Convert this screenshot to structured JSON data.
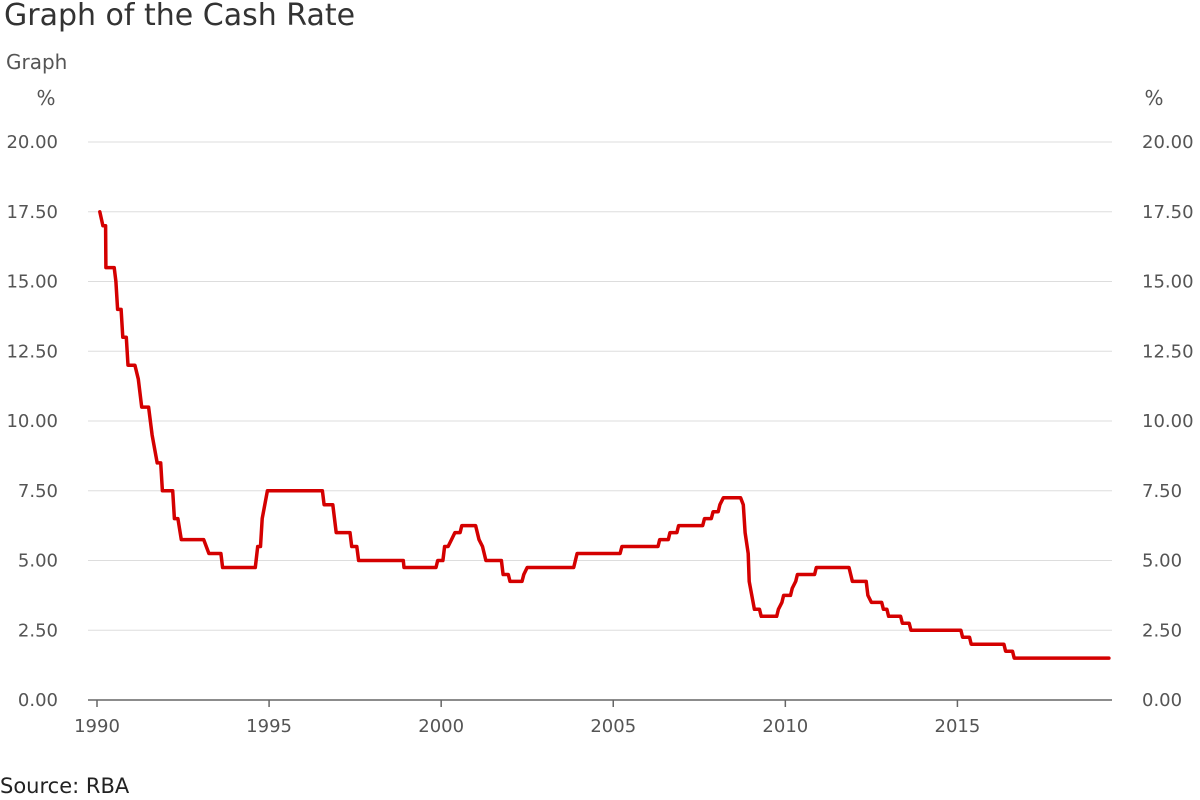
{
  "title": "Graph of the Cash Rate",
  "subtitle": "Graph",
  "source": "Source: RBA",
  "colors": {
    "series": "#d40000",
    "grid": "#dddddd",
    "axis": "#666666"
  },
  "chart_data": {
    "type": "line",
    "y_unit_left": "%",
    "y_unit_right": "%",
    "ylim": [
      0,
      20
    ],
    "xlim": [
      1989.8,
      2019.5
    ],
    "grid": "horizontal",
    "legend": "none",
    "y_ticks": [
      {
        "value": 0,
        "label": "0.00"
      },
      {
        "value": 2.5,
        "label": "2.50"
      },
      {
        "value": 5,
        "label": "5.00"
      },
      {
        "value": 7.5,
        "label": "7.50"
      },
      {
        "value": 10,
        "label": "10.00"
      },
      {
        "value": 12.5,
        "label": "12.50"
      },
      {
        "value": 15,
        "label": "15.00"
      },
      {
        "value": 17.5,
        "label": "17.50"
      },
      {
        "value": 20,
        "label": "20.00"
      }
    ],
    "x_ticks": [
      {
        "value": 1990,
        "label": "1990"
      },
      {
        "value": 1995,
        "label": "1995"
      },
      {
        "value": 2000,
        "label": "2000"
      },
      {
        "value": 2005,
        "label": "2005"
      },
      {
        "value": 2010,
        "label": "2010"
      },
      {
        "value": 2015,
        "label": "2015"
      }
    ],
    "series": [
      {
        "points": [
          [
            1990.08,
            17.5
          ],
          [
            1990.17,
            17.0
          ],
          [
            1990.25,
            17.0
          ],
          [
            1990.26,
            15.5
          ],
          [
            1990.5,
            15.5
          ],
          [
            1990.55,
            15.0
          ],
          [
            1990.6,
            14.0
          ],
          [
            1990.7,
            14.0
          ],
          [
            1990.75,
            13.0
          ],
          [
            1990.85,
            13.0
          ],
          [
            1990.9,
            12.0
          ],
          [
            1991.1,
            12.0
          ],
          [
            1991.2,
            11.5
          ],
          [
            1991.3,
            10.5
          ],
          [
            1991.5,
            10.5
          ],
          [
            1991.6,
            9.5
          ],
          [
            1991.75,
            8.5
          ],
          [
            1991.85,
            8.5
          ],
          [
            1991.9,
            7.5
          ],
          [
            1992.2,
            7.5
          ],
          [
            1992.25,
            6.5
          ],
          [
            1992.35,
            6.5
          ],
          [
            1992.45,
            5.75
          ],
          [
            1993.1,
            5.75
          ],
          [
            1993.25,
            5.25
          ],
          [
            1993.6,
            5.25
          ],
          [
            1993.65,
            4.75
          ],
          [
            1994.6,
            4.75
          ],
          [
            1994.67,
            5.5
          ],
          [
            1994.75,
            5.5
          ],
          [
            1994.8,
            6.5
          ],
          [
            1994.95,
            7.5
          ],
          [
            1996.55,
            7.5
          ],
          [
            1996.6,
            7.0
          ],
          [
            1996.85,
            7.0
          ],
          [
            1996.95,
            6.0
          ],
          [
            1997.35,
            6.0
          ],
          [
            1997.4,
            5.5
          ],
          [
            1997.55,
            5.5
          ],
          [
            1997.6,
            5.0
          ],
          [
            1998.9,
            5.0
          ],
          [
            1998.92,
            4.75
          ],
          [
            1999.85,
            4.75
          ],
          [
            1999.9,
            5.0
          ],
          [
            2000.05,
            5.0
          ],
          [
            2000.1,
            5.5
          ],
          [
            2000.2,
            5.5
          ],
          [
            2000.3,
            5.75
          ],
          [
            2000.4,
            6.0
          ],
          [
            2000.55,
            6.0
          ],
          [
            2000.6,
            6.25
          ],
          [
            2001.0,
            6.25
          ],
          [
            2001.1,
            5.75
          ],
          [
            2001.2,
            5.5
          ],
          [
            2001.3,
            5.0
          ],
          [
            2001.75,
            5.0
          ],
          [
            2001.8,
            4.5
          ],
          [
            2001.95,
            4.5
          ],
          [
            2002.0,
            4.25
          ],
          [
            2002.35,
            4.25
          ],
          [
            2002.4,
            4.5
          ],
          [
            2002.5,
            4.75
          ],
          [
            2003.85,
            4.75
          ],
          [
            2003.9,
            5.0
          ],
          [
            2003.95,
            5.25
          ],
          [
            2005.2,
            5.25
          ],
          [
            2005.25,
            5.5
          ],
          [
            2006.3,
            5.5
          ],
          [
            2006.35,
            5.75
          ],
          [
            2006.6,
            5.75
          ],
          [
            2006.65,
            6.0
          ],
          [
            2006.85,
            6.0
          ],
          [
            2006.9,
            6.25
          ],
          [
            2007.6,
            6.25
          ],
          [
            2007.65,
            6.5
          ],
          [
            2007.85,
            6.5
          ],
          [
            2007.9,
            6.75
          ],
          [
            2008.05,
            6.75
          ],
          [
            2008.1,
            7.0
          ],
          [
            2008.2,
            7.25
          ],
          [
            2008.7,
            7.25
          ],
          [
            2008.78,
            7.0
          ],
          [
            2008.83,
            6.0
          ],
          [
            2008.92,
            5.25
          ],
          [
            2008.95,
            4.25
          ],
          [
            2009.1,
            3.25
          ],
          [
            2009.25,
            3.25
          ],
          [
            2009.3,
            3.0
          ],
          [
            2009.75,
            3.0
          ],
          [
            2009.8,
            3.25
          ],
          [
            2009.9,
            3.5
          ],
          [
            2009.95,
            3.75
          ],
          [
            2010.15,
            3.75
          ],
          [
            2010.2,
            4.0
          ],
          [
            2010.3,
            4.25
          ],
          [
            2010.35,
            4.5
          ],
          [
            2010.85,
            4.5
          ],
          [
            2010.9,
            4.75
          ],
          [
            2011.85,
            4.75
          ],
          [
            2011.9,
            4.5
          ],
          [
            2011.95,
            4.25
          ],
          [
            2012.35,
            4.25
          ],
          [
            2012.4,
            3.75
          ],
          [
            2012.5,
            3.5
          ],
          [
            2012.8,
            3.5
          ],
          [
            2012.85,
            3.25
          ],
          [
            2012.95,
            3.25
          ],
          [
            2013.0,
            3.0
          ],
          [
            2013.35,
            3.0
          ],
          [
            2013.4,
            2.75
          ],
          [
            2013.6,
            2.75
          ],
          [
            2013.65,
            2.5
          ],
          [
            2015.1,
            2.5
          ],
          [
            2015.15,
            2.25
          ],
          [
            2015.35,
            2.25
          ],
          [
            2015.4,
            2.0
          ],
          [
            2016.35,
            2.0
          ],
          [
            2016.4,
            1.75
          ],
          [
            2016.6,
            1.75
          ],
          [
            2016.65,
            1.5
          ],
          [
            2019.4,
            1.5
          ]
        ]
      }
    ]
  }
}
